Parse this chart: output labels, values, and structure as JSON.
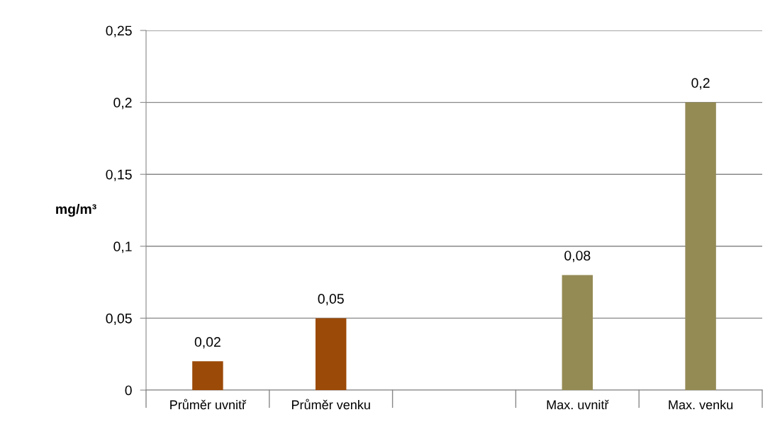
{
  "chart_data": {
    "type": "bar",
    "ylabel": "mg/m³",
    "categories": [
      "Průměr uvnitř",
      "Průměr venku",
      null,
      "Max. uvnitř",
      "Max. venku"
    ],
    "values": [
      0.02,
      0.05,
      null,
      0.08,
      0.2
    ],
    "colors": [
      "#9c4a08",
      "#9c4a08",
      null,
      "#948a54",
      "#948a54"
    ],
    "value_labels": [
      "0,02",
      "0,05",
      null,
      "0,08",
      "0,2"
    ],
    "ylim": [
      0,
      0.25
    ],
    "yticks": [
      0,
      {
        "value": 0.05,
        "label": "0,05"
      },
      {
        "value": 0.1,
        "label": "0,1"
      },
      {
        "value": 0.15,
        "label": "0,15"
      },
      {
        "value": 0.2,
        "label": "0,2"
      },
      {
        "value": 0.25,
        "label": "0,25"
      }
    ],
    "grid": "y",
    "legend": false
  }
}
